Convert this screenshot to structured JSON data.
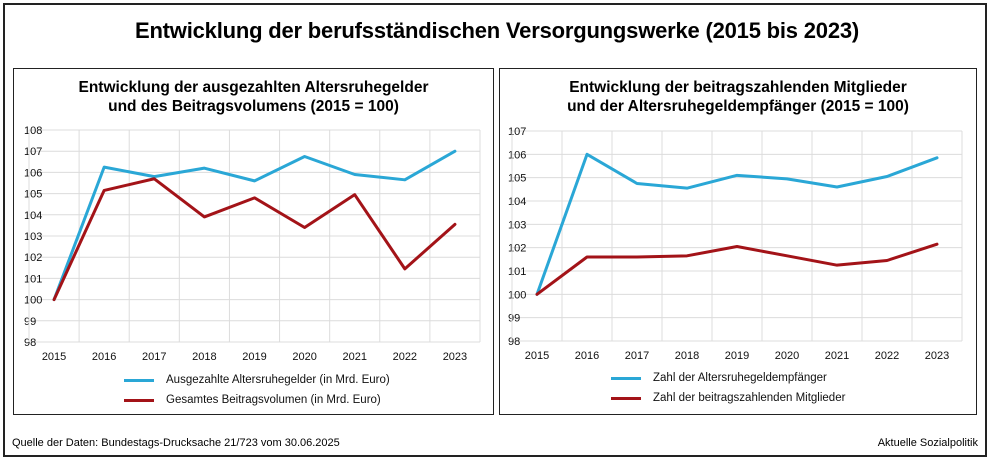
{
  "title": "Entwicklung der berufsständischen Versorgungswerke (2015 bis 2023)",
  "footer": {
    "source": "Quelle der Daten: Bundestags-Drucksache 21/723 vom 30.06.2025",
    "publisher": "Aktuelle Sozialpolitik"
  },
  "colors": {
    "blue": "#2aa7d6",
    "red": "#a31318",
    "grid": "#dcdcdc"
  },
  "chart_data": [
    {
      "type": "line",
      "title": "Entwicklung der ausgezahlten Altersruhegelder\nund des  Beitragsvolumens (2015 = 100)",
      "xlabel": "",
      "ylabel": "",
      "categories": [
        "2015",
        "2016",
        "2017",
        "2018",
        "2019",
        "2020",
        "2021",
        "2022",
        "2023"
      ],
      "ylim": [
        98,
        108
      ],
      "yticks": [
        "98",
        "99",
        "100",
        "101",
        "102",
        "103",
        "104",
        "105",
        "106",
        "107",
        "108"
      ],
      "grid": true,
      "legend": "bottom",
      "series": [
        {
          "name": "Ausgezahlte Altersruhegelder (in Mrd. Euro)",
          "color": "#2aa7d6",
          "values": [
            100,
            106.25,
            105.8,
            106.2,
            105.6,
            106.75,
            105.9,
            105.65,
            107.0
          ]
        },
        {
          "name": "Gesamtes Beitragsvolumen (in Mrd. Euro)",
          "color": "#a31318",
          "values": [
            100,
            105.15,
            105.7,
            103.9,
            104.8,
            103.4,
            104.95,
            101.45,
            103.55
          ]
        }
      ]
    },
    {
      "type": "line",
      "title": "Entwicklung der beitragszahlenden Mitglieder\nund der Altersruhegeldempfänger (2015 = 100)",
      "xlabel": "",
      "ylabel": "",
      "categories": [
        "2015",
        "2016",
        "2017",
        "2018",
        "2019",
        "2020",
        "2021",
        "2022",
        "2023"
      ],
      "ylim": [
        98,
        107
      ],
      "yticks": [
        "98",
        "99",
        "100",
        "101",
        "102",
        "103",
        "104",
        "105",
        "106",
        "107"
      ],
      "grid": true,
      "legend": "bottom",
      "series": [
        {
          "name": "Zahl der Altersruhegeldempfänger",
          "color": "#2aa7d6",
          "values": [
            100,
            106.0,
            104.75,
            104.55,
            105.1,
            104.95,
            104.6,
            105.05,
            105.85
          ]
        },
        {
          "name": "Zahl der beitragszahlenden Mitglieder",
          "color": "#a31318",
          "values": [
            100,
            101.6,
            101.6,
            101.65,
            102.05,
            101.65,
            101.25,
            101.45,
            102.15
          ]
        }
      ]
    }
  ]
}
